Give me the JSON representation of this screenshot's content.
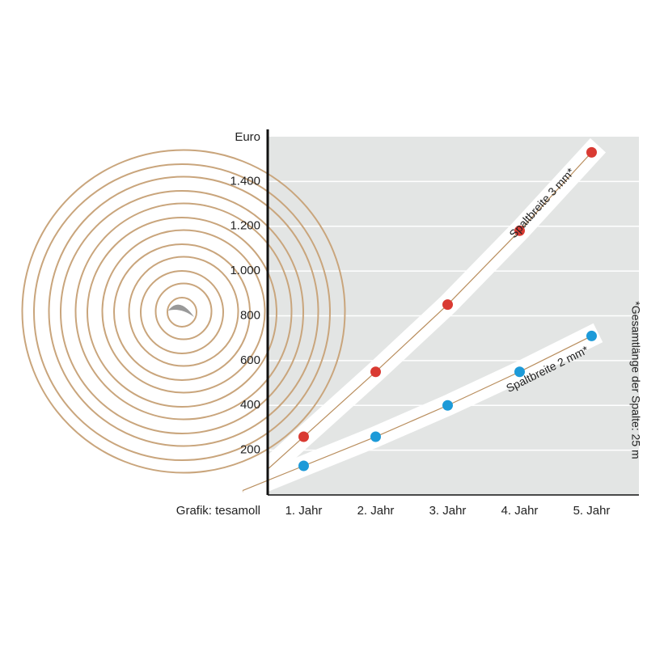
{
  "chart_data": {
    "type": "line",
    "y_label": "Euro",
    "source": "Grafik: tesamoll",
    "annotation": "*Gesamtlänge der Spalte: 25 m",
    "categories": [
      "1. Jahr",
      "2. Jahr",
      "3. Jahr",
      "4. Jahr",
      "5. Jahr"
    ],
    "series": [
      {
        "name": "Spaltbreite 3 mm*",
        "color": "#d93a32",
        "values": [
          260,
          550,
          850,
          1180,
          1530
        ]
      },
      {
        "name": "Spaltbreite 2 mm*",
        "color": "#1d9ad8",
        "values": [
          130,
          260,
          400,
          550,
          710
        ]
      }
    ],
    "ylim": [
      0,
      1600
    ],
    "yticks": [
      200,
      400,
      600,
      800,
      {
        "value": 1000,
        "label": "1.000"
      },
      {
        "value": 1200,
        "label": "1.200"
      },
      {
        "value": 1400,
        "label": "1.400"
      }
    ],
    "grid": true
  }
}
